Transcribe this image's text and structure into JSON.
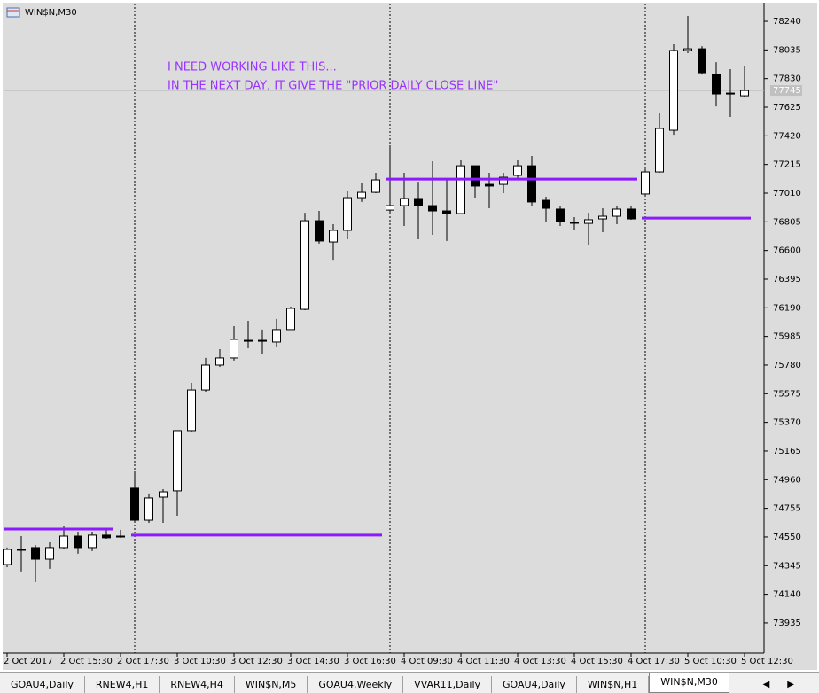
{
  "chart_data": {
    "type": "candlestick",
    "title": "WIN$N,M30",
    "annotations": [
      "I NEED WORKING LIKE THIS...",
      "IN THE NEXT DAY, IT GIVE THE \"PRIOR DAILY CLOSE LINE\""
    ],
    "categories": [
      "2 Oct 2017",
      null,
      null,
      null,
      "2 Oct 15:30",
      null,
      null,
      null,
      "2 Oct 17:30",
      null,
      null,
      null,
      "3 Oct 10:30",
      null,
      null,
      null,
      "3 Oct 12:30",
      null,
      null,
      null,
      "3 Oct 14:30",
      null,
      null,
      null,
      "3 Oct 16:30",
      null,
      null,
      null,
      "4 Oct 09:30",
      null,
      null,
      null,
      "4 Oct 11:30",
      null,
      null,
      null,
      "4 Oct 13:30",
      null,
      null,
      null,
      "4 Oct 15:30",
      null,
      null,
      null,
      "4 Oct 17:30",
      null,
      null,
      null,
      "5 Oct 10:30",
      null,
      null,
      null,
      "5 Oct 12:30"
    ],
    "open": [
      74353,
      74461,
      74474,
      74391,
      74474,
      74556,
      74474,
      74563,
      74556,
      74899,
      74670,
      74835,
      74880,
      75311,
      75602,
      75780,
      75831,
      75957,
      75957,
      75945,
      76034,
      76179,
      76813,
      76661,
      76744,
      76978,
      77016,
      76889,
      76921,
      76972,
      76921,
      76883,
      76864,
      77206,
      77073,
      77073,
      77137,
      77206,
      76959,
      76896,
      76801,
      76794,
      76826,
      76845,
      76896,
      77004,
      77162,
      77460,
      78031,
      78043,
      77859,
      77726,
      77707
    ],
    "high": [
      74474,
      74556,
      74493,
      74512,
      74626,
      74588,
      74588,
      74601,
      74601,
      75013,
      74861,
      74892,
      75311,
      75653,
      75831,
      75894,
      76059,
      76097,
      76034,
      76110,
      76198,
      76870,
      76883,
      76788,
      77023,
      77080,
      77156,
      77346,
      77156,
      77092,
      77238,
      77111,
      77251,
      77206,
      77156,
      77156,
      77251,
      77276,
      76985,
      76921,
      76839,
      76870,
      76902,
      76921,
      76921,
      77187,
      77581,
      78075,
      78278,
      78062,
      77948,
      77898,
      77917
    ],
    "low": [
      74334,
      74303,
      74227,
      74322,
      74461,
      74430,
      74449,
      74537,
      74544,
      74651,
      74651,
      74651,
      74702,
      75298,
      75590,
      75767,
      75812,
      75900,
      75856,
      75907,
      76034,
      76173,
      76649,
      76534,
      76680,
      76947,
      77010,
      76870,
      76775,
      76680,
      76712,
      76668,
      76864,
      76978,
      76902,
      77010,
      77105,
      76921,
      76807,
      76775,
      76744,
      76636,
      76731,
      76788,
      76820,
      76997,
      77156,
      77428,
      78012,
      77859,
      77631,
      77555,
      77695
    ],
    "close": [
      74461,
      74461,
      74391,
      74474,
      74556,
      74474,
      74563,
      74544,
      74556,
      74670,
      74829,
      74873,
      75311,
      75602,
      75780,
      75831,
      75964,
      75957,
      75957,
      76034,
      76186,
      76813,
      76668,
      76744,
      76978,
      77016,
      77105,
      76921,
      76972,
      76921,
      76883,
      76864,
      77206,
      77061,
      77061,
      77124,
      77206,
      76947,
      76902,
      76807,
      76801,
      76820,
      76845,
      76896,
      76826,
      77162,
      77473,
      78031,
      78043,
      77872,
      77720,
      77726,
      77745
    ],
    "up_color": "#ffffff",
    "down_color": "#000000",
    "ylim": [
      73719,
      78367
    ],
    "yticks": [
      73935,
      74140,
      74345,
      74550,
      74755,
      74960,
      75165,
      75370,
      75575,
      75780,
      75985,
      76190,
      76395,
      76600,
      76805,
      77010,
      77215,
      77420,
      77625,
      77830,
      78035,
      78240
    ],
    "current_price": 77745,
    "day_separators": [
      9,
      27,
      45
    ],
    "levels": [
      {
        "value": 74607,
        "from": 0,
        "to": 7
      },
      {
        "value": 74563,
        "from": 9,
        "to": 26
      },
      {
        "value": 77111,
        "from": 27,
        "to": 44
      },
      {
        "value": 76832,
        "from": 45,
        "to": 52
      }
    ],
    "level_color": "#8b1aff",
    "annotation_color": "#9a33ff"
  },
  "tabs": [
    "GOAU4,Daily",
    "RNEW4,H1",
    "RNEW4,H4",
    "WIN$N,M5",
    "GOAU4,Weekly",
    "VVAR11,Daily",
    "GOAU4,Daily",
    "WIN$N,H1",
    "WIN$N,M30"
  ],
  "active_tab": 8
}
